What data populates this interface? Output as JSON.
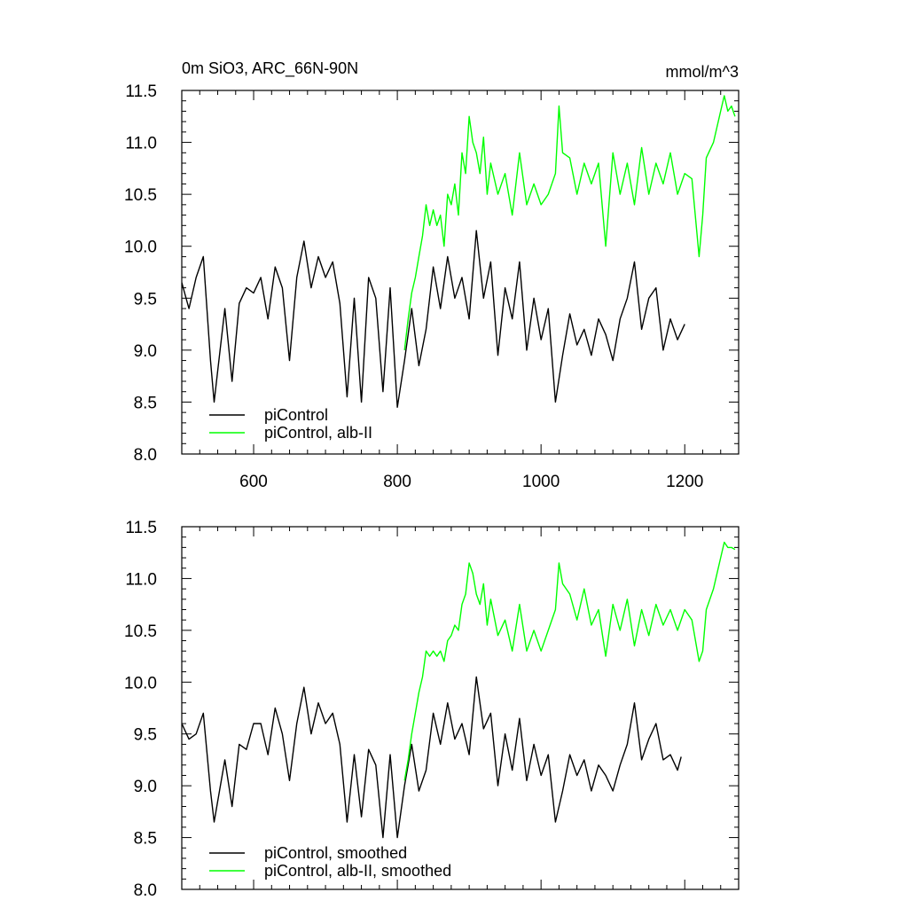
{
  "chart_data": [
    {
      "type": "line",
      "title": "0m SiO3, ARC_66N-90N",
      "units": "mmol/m^3",
      "xlim": [
        500,
        1275
      ],
      "ylim": [
        8.0,
        11.5
      ],
      "xticks": [
        600,
        800,
        1000,
        1200
      ],
      "xtick_labels": [
        "600",
        "800",
        "1000",
        "1200"
      ],
      "yticks": [
        8.0,
        8.5,
        9.0,
        9.5,
        10.0,
        10.5,
        11.0,
        11.5
      ],
      "ytick_labels": [
        "8.0",
        "8.5",
        "9.0",
        "9.5",
        "10.0",
        "10.5",
        "11.0",
        "11.5"
      ],
      "legend_position": "bottom-left",
      "series": [
        {
          "name": "piControl",
          "color": "#000000",
          "x": [
            500,
            510,
            520,
            530,
            540,
            545,
            550,
            560,
            570,
            580,
            590,
            600,
            610,
            620,
            630,
            640,
            650,
            660,
            670,
            680,
            690,
            700,
            710,
            720,
            730,
            740,
            750,
            760,
            770,
            780,
            790,
            800,
            810,
            820,
            830,
            840,
            850,
            860,
            870,
            880,
            890,
            900,
            910,
            920,
            930,
            940,
            950,
            960,
            970,
            980,
            990,
            1000,
            1010,
            1020,
            1030,
            1040,
            1050,
            1060,
            1070,
            1080,
            1090,
            1100,
            1110,
            1120,
            1130,
            1140,
            1150,
            1160,
            1170,
            1180,
            1190,
            1200
          ],
          "values": [
            9.65,
            9.4,
            9.7,
            9.9,
            8.9,
            8.5,
            8.8,
            9.4,
            8.7,
            9.45,
            9.6,
            9.55,
            9.7,
            9.3,
            9.8,
            9.6,
            8.9,
            9.7,
            10.05,
            9.6,
            9.9,
            9.7,
            9.85,
            9.45,
            8.55,
            9.5,
            8.5,
            9.7,
            9.5,
            8.6,
            9.6,
            8.45,
            8.9,
            9.4,
            8.85,
            9.2,
            9.8,
            9.4,
            9.9,
            9.5,
            9.7,
            9.3,
            10.15,
            9.5,
            9.85,
            8.95,
            9.6,
            9.3,
            9.85,
            9.0,
            9.5,
            9.1,
            9.4,
            8.5,
            8.95,
            9.35,
            9.05,
            9.2,
            8.95,
            9.3,
            9.15,
            8.9,
            9.3,
            9.5,
            9.85,
            9.2,
            9.5,
            9.6,
            9.0,
            9.3,
            9.1,
            9.25
          ]
        },
        {
          "name": "piControl, alb-II",
          "color": "#00ff00",
          "x": [
            810,
            815,
            820,
            825,
            830,
            835,
            840,
            845,
            850,
            855,
            860,
            865,
            870,
            875,
            880,
            885,
            890,
            895,
            900,
            905,
            910,
            915,
            920,
            925,
            930,
            940,
            950,
            960,
            970,
            980,
            990,
            1000,
            1010,
            1020,
            1025,
            1030,
            1040,
            1050,
            1060,
            1070,
            1080,
            1090,
            1100,
            1110,
            1120,
            1130,
            1140,
            1150,
            1160,
            1170,
            1180,
            1190,
            1200,
            1210,
            1220,
            1225,
            1230,
            1240,
            1250,
            1255,
            1260,
            1265,
            1270
          ],
          "values": [
            9.0,
            9.3,
            9.55,
            9.7,
            9.9,
            10.1,
            10.4,
            10.2,
            10.35,
            10.2,
            10.3,
            10.0,
            10.5,
            10.4,
            10.6,
            10.3,
            10.9,
            10.7,
            11.25,
            11.0,
            10.9,
            10.7,
            11.05,
            10.5,
            10.8,
            10.5,
            10.7,
            10.3,
            10.9,
            10.4,
            10.6,
            10.4,
            10.5,
            10.7,
            11.35,
            10.9,
            10.85,
            10.5,
            10.8,
            10.6,
            10.8,
            10.0,
            10.9,
            10.5,
            10.8,
            10.4,
            10.95,
            10.5,
            10.8,
            10.6,
            10.9,
            10.5,
            10.7,
            10.65,
            9.9,
            10.3,
            10.85,
            11.0,
            11.3,
            11.45,
            11.3,
            11.35,
            11.25
          ]
        }
      ]
    },
    {
      "type": "line",
      "title": "",
      "units": "",
      "xlim": [
        500,
        1275
      ],
      "ylim": [
        8.0,
        11.5
      ],
      "xticks": [
        600,
        800,
        1000,
        1200
      ],
      "yticks": [
        8.0,
        8.5,
        9.0,
        9.5,
        10.0,
        10.5,
        11.0,
        11.5
      ],
      "ytick_labels": [
        "8.0",
        "8.5",
        "9.0",
        "9.5",
        "10.0",
        "10.5",
        "11.0",
        "11.5"
      ],
      "legend_position": "bottom-left",
      "series": [
        {
          "name": "piControl, smoothed",
          "color": "#000000",
          "x": [
            500,
            510,
            520,
            530,
            540,
            545,
            550,
            560,
            570,
            580,
            590,
            600,
            610,
            620,
            630,
            640,
            650,
            660,
            670,
            680,
            690,
            700,
            710,
            720,
            730,
            740,
            750,
            760,
            770,
            780,
            790,
            800,
            810,
            820,
            830,
            840,
            850,
            860,
            870,
            880,
            890,
            900,
            910,
            920,
            930,
            940,
            950,
            960,
            970,
            980,
            990,
            1000,
            1010,
            1020,
            1030,
            1040,
            1050,
            1060,
            1070,
            1080,
            1090,
            1100,
            1110,
            1120,
            1130,
            1140,
            1150,
            1160,
            1170,
            1180,
            1190,
            1195
          ],
          "values": [
            9.6,
            9.45,
            9.5,
            9.7,
            8.95,
            8.65,
            8.85,
            9.25,
            8.8,
            9.4,
            9.35,
            9.6,
            9.6,
            9.3,
            9.75,
            9.5,
            9.05,
            9.6,
            9.95,
            9.5,
            9.8,
            9.6,
            9.7,
            9.4,
            8.65,
            9.3,
            8.7,
            9.35,
            9.2,
            8.5,
            9.3,
            8.5,
            9.0,
            9.4,
            8.95,
            9.15,
            9.7,
            9.4,
            9.8,
            9.45,
            9.6,
            9.3,
            10.05,
            9.55,
            9.7,
            9.0,
            9.5,
            9.15,
            9.65,
            9.05,
            9.4,
            9.1,
            9.3,
            8.65,
            8.95,
            9.3,
            9.1,
            9.25,
            8.95,
            9.2,
            9.1,
            8.95,
            9.2,
            9.4,
            9.8,
            9.25,
            9.45,
            9.6,
            9.25,
            9.3,
            9.15,
            9.28
          ]
        },
        {
          "name": "piControl, alb-II, smoothed",
          "color": "#00ff00",
          "x": [
            810,
            815,
            820,
            825,
            830,
            835,
            840,
            845,
            850,
            855,
            860,
            865,
            870,
            875,
            880,
            885,
            890,
            895,
            900,
            905,
            910,
            915,
            920,
            925,
            930,
            940,
            950,
            960,
            970,
            980,
            990,
            1000,
            1010,
            1020,
            1025,
            1030,
            1040,
            1050,
            1060,
            1070,
            1080,
            1090,
            1100,
            1110,
            1120,
            1130,
            1140,
            1150,
            1160,
            1170,
            1180,
            1190,
            1200,
            1210,
            1220,
            1225,
            1230,
            1240,
            1250,
            1255,
            1260,
            1265,
            1270
          ],
          "values": [
            9.05,
            9.25,
            9.5,
            9.7,
            9.9,
            10.05,
            10.3,
            10.25,
            10.3,
            10.25,
            10.3,
            10.2,
            10.4,
            10.45,
            10.55,
            10.5,
            10.75,
            10.85,
            11.15,
            11.05,
            10.85,
            10.75,
            10.95,
            10.55,
            10.8,
            10.45,
            10.6,
            10.3,
            10.75,
            10.3,
            10.5,
            10.3,
            10.5,
            10.7,
            11.15,
            10.95,
            10.85,
            10.6,
            10.9,
            10.55,
            10.7,
            10.25,
            10.75,
            10.5,
            10.8,
            10.35,
            10.7,
            10.45,
            10.75,
            10.55,
            10.7,
            10.5,
            10.7,
            10.6,
            10.2,
            10.3,
            10.7,
            10.9,
            11.2,
            11.35,
            11.3,
            11.3,
            11.28
          ]
        }
      ]
    }
  ]
}
